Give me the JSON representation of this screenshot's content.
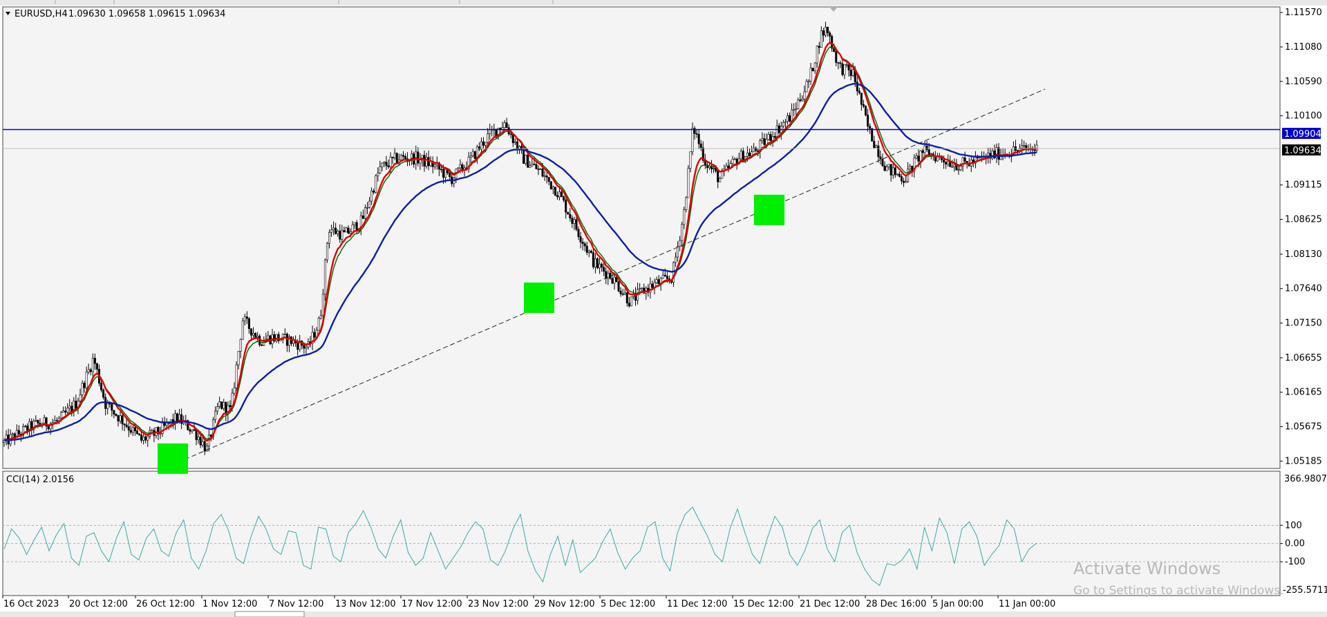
{
  "header": {
    "symbol_label": "EURUSD,H4",
    "ohlc": "1.09630 1.09658 1.09615 1.09634"
  },
  "price_panel": {
    "horizontal_line_price": "1.09904",
    "current_price": "1.09634",
    "line_color": "#0000cc"
  },
  "indicator_panel": {
    "label": "CCI(14) 2.0156",
    "max_label": "366.9807",
    "min_label": "-255.5711"
  },
  "watermark": {
    "title": "Activate Windows",
    "subtitle": "Go to Settings to activate Windows."
  },
  "colors": {
    "fast_ma": "#e00000",
    "mid_ma": "#006400",
    "slow_ma": "#0a1ea8",
    "cci": "#3aa8a8",
    "highlight": "#00ee00"
  },
  "chart_data": [
    {
      "type": "candlestick",
      "symbol": "EURUSD",
      "timeframe": "H4",
      "y_tick_labels": [
        "1.11570",
        "1.11080",
        "1.10590",
        "1.10100",
        "1.09115",
        "1.08625",
        "1.08130",
        "1.07640",
        "1.07150",
        "1.06655",
        "1.06165",
        "1.05675",
        "1.05185"
      ],
      "y_ticks": [
        1.1157,
        1.1108,
        1.1059,
        1.101,
        1.09115,
        1.08625,
        1.0813,
        1.0764,
        1.0715,
        1.06655,
        1.06165,
        1.05675,
        1.05185
      ],
      "ylim": [
        1.0508,
        1.1165
      ],
      "x_tick_labels": [
        "16 Oct 2023",
        "20 Oct 12:00",
        "26 Oct 12:00",
        "1 Nov 12:00",
        "7 Nov 12:00",
        "13 Nov 12:00",
        "17 Nov 12:00",
        "23 Nov 12:00",
        "29 Nov 12:00",
        "5 Dec 12:00",
        "11 Dec 12:00",
        "15 Dec 12:00",
        "21 Dec 12:00",
        "28 Dec 16:00",
        "5 Jan 00:00",
        "11 Jan 00:00"
      ],
      "close_path": [
        [
          0,
          1.0545
        ],
        [
          25,
          1.057
        ],
        [
          45,
          1.0575
        ],
        [
          60,
          1.06
        ],
        [
          75,
          1.0665
        ],
        [
          85,
          1.06
        ],
        [
          100,
          1.0575
        ],
        [
          115,
          1.0548
        ],
        [
          130,
          1.056
        ],
        [
          145,
          1.058
        ],
        [
          160,
          1.056
        ],
        [
          170,
          1.0535
        ],
        [
          180,
          1.06
        ],
        [
          190,
          1.059
        ],
        [
          200,
          1.072
        ],
        [
          215,
          1.069
        ],
        [
          225,
          1.0695
        ],
        [
          240,
          1.069
        ],
        [
          255,
          1.068
        ],
        [
          265,
          1.072
        ],
        [
          272,
          1.085
        ],
        [
          285,
          1.084
        ],
        [
          300,
          1.086
        ],
        [
          315,
          1.0935
        ],
        [
          330,
          1.095
        ],
        [
          345,
          1.095
        ],
        [
          360,
          1.094
        ],
        [
          375,
          1.092
        ],
        [
          390,
          1.0945
        ],
        [
          405,
          1.098
        ],
        [
          420,
          1.1
        ],
        [
          435,
          1.095
        ],
        [
          450,
          1.093
        ],
        [
          465,
          1.09
        ],
        [
          480,
          1.085
        ],
        [
          495,
          1.08
        ],
        [
          510,
          1.078
        ],
        [
          525,
          1.0745
        ],
        [
          535,
          1.076
        ],
        [
          545,
          1.077
        ],
        [
          560,
          1.078
        ],
        [
          570,
          1.087
        ],
        [
          578,
          1.0995
        ],
        [
          588,
          1.0945
        ],
        [
          600,
          1.092
        ],
        [
          615,
          1.095
        ],
        [
          630,
          1.096
        ],
        [
          645,
          1.0985
        ],
        [
          660,
          1.101
        ],
        [
          675,
          1.106
        ],
        [
          685,
          1.1125
        ],
        [
          690,
          1.1135
        ],
        [
          700,
          1.108
        ],
        [
          712,
          1.107
        ],
        [
          725,
          1.099
        ],
        [
          740,
          1.0935
        ],
        [
          755,
          1.092
        ],
        [
          770,
          1.096
        ],
        [
          785,
          1.095
        ],
        [
          800,
          1.094
        ],
        [
          815,
          1.0945
        ],
        [
          830,
          1.0955
        ],
        [
          845,
          1.096
        ],
        [
          860,
          1.0963
        ],
        [
          866,
          1.0963
        ]
      ],
      "horizontal_line": 1.09904,
      "current_price": 1.09634,
      "trendline": [
        [
          237,
          1.0508
        ],
        [
          1512,
          1.1048
        ]
      ],
      "highlight_marks": [
        {
          "x": 250,
          "y": 1.0522
        },
        {
          "x": 780,
          "y": 1.0751
        },
        {
          "x": 1113,
          "y": 1.0876
        }
      ],
      "series": [
        {
          "name": "",
          "values_from": "close_path",
          "period_px": 3
        },
        {
          "name": "",
          "values_from": "close_path",
          "period_px": 6
        },
        {
          "name": "",
          "values_from": "close_path",
          "period_px": 22
        }
      ]
    },
    {
      "type": "line",
      "indicator": "CCI(14)",
      "current_value": 2.0156,
      "y_tick_labels": [
        "100",
        "0.00",
        "-100"
      ],
      "y_ticks": [
        100,
        0,
        -100
      ],
      "ylim": [
        -255.5711,
        366.9807
      ],
      "values": [
        -30,
        80,
        30,
        -60,
        20,
        90,
        -40,
        50,
        110,
        -80,
        -120,
        40,
        60,
        -40,
        -100,
        30,
        120,
        -60,
        -90,
        30,
        80,
        -40,
        -70,
        60,
        130,
        -80,
        -140,
        -40,
        110,
        160,
        70,
        -80,
        -110,
        40,
        150,
        80,
        -30,
        -60,
        70,
        60,
        -120,
        -140,
        90,
        80,
        -70,
        -100,
        60,
        110,
        180,
        90,
        -30,
        -80,
        40,
        130,
        -50,
        -120,
        -80,
        60,
        -40,
        -140,
        -80,
        -20,
        60,
        120,
        80,
        -90,
        -120,
        -40,
        80,
        160,
        -40,
        -150,
        -210,
        -60,
        40,
        -120,
        20,
        -160,
        -120,
        -80,
        10,
        80,
        -50,
        -140,
        -80,
        -40,
        90,
        120,
        -80,
        -150,
        60,
        160,
        200,
        120,
        40,
        -60,
        -100,
        80,
        190,
        60,
        -60,
        -110,
        30,
        150,
        90,
        -60,
        -120,
        -40,
        80,
        130,
        -30,
        -100,
        60,
        100,
        -50,
        -140,
        -200,
        -230,
        -110,
        -120,
        -90,
        -30,
        -140,
        90,
        -40,
        140,
        60,
        -110,
        80,
        120,
        40,
        -120,
        -60,
        -10,
        130,
        80,
        -100,
        -30,
        2
      ]
    }
  ]
}
